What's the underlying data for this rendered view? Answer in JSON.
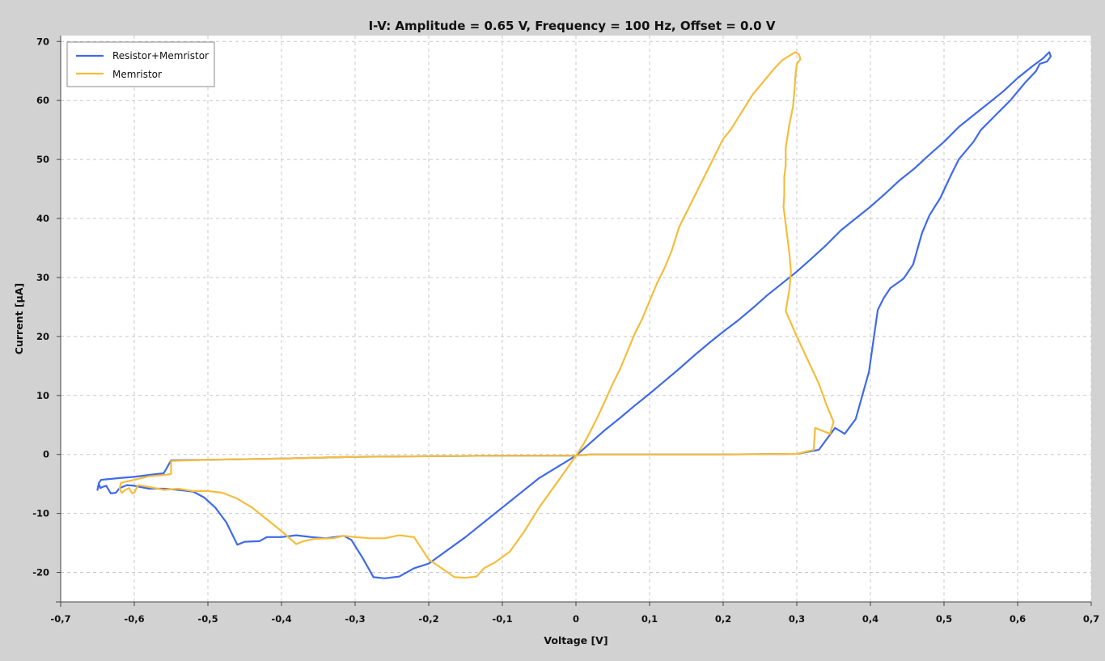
{
  "chart_data": {
    "type": "line",
    "title": "I-V: Amplitude = 0.65 V, Frequency = 100 Hz, Offset = 0.0 V",
    "xlabel": "Voltage [V]",
    "ylabel": "Current [µA]",
    "xlim": [
      -0.7,
      0.7
    ],
    "ylim": [
      -25,
      71
    ],
    "x_ticks": [
      -0.7,
      -0.6,
      -0.5,
      -0.4,
      -0.3,
      -0.2,
      -0.1,
      0,
      0.1,
      0.2,
      0.3,
      0.4,
      0.5,
      0.6,
      0.7
    ],
    "x_tick_labels": [
      "-0,7",
      "-0,6",
      "-0,5",
      "-0,4",
      "-0,3",
      "-0,2",
      "-0,1",
      "0",
      "0,1",
      "0,2",
      "0,3",
      "0,4",
      "0,5",
      "0,6",
      "0,7"
    ],
    "y_ticks": [
      -20,
      -10,
      0,
      10,
      20,
      30,
      40,
      50,
      60,
      70
    ],
    "y_tick_labels": [
      "-20",
      "-10",
      "0",
      "10",
      "20",
      "30",
      "40",
      "50",
      "60",
      "70"
    ],
    "grid": true,
    "legend_position": "top-left",
    "series": [
      {
        "name": "Resistor+Memristor",
        "color": "#3f6ae8",
        "points": [
          [
            0,
            -0.2
          ],
          [
            0.02,
            2
          ],
          [
            0.04,
            4.2
          ],
          [
            0.06,
            6.2
          ],
          [
            0.08,
            8.3
          ],
          [
            0.1,
            10.3
          ],
          [
            0.12,
            12.4
          ],
          [
            0.14,
            14.5
          ],
          [
            0.16,
            16.7
          ],
          [
            0.18,
            18.8
          ],
          [
            0.2,
            20.8
          ],
          [
            0.22,
            22.7
          ],
          [
            0.24,
            24.8
          ],
          [
            0.26,
            27
          ],
          [
            0.28,
            29
          ],
          [
            0.3,
            31
          ],
          [
            0.32,
            33.2
          ],
          [
            0.34,
            35.5
          ],
          [
            0.36,
            38
          ],
          [
            0.38,
            40
          ],
          [
            0.4,
            42
          ],
          [
            0.42,
            44.2
          ],
          [
            0.44,
            46.5
          ],
          [
            0.46,
            48.5
          ],
          [
            0.48,
            50.8
          ],
          [
            0.5,
            53
          ],
          [
            0.52,
            55.5
          ],
          [
            0.54,
            57.5
          ],
          [
            0.56,
            59.5
          ],
          [
            0.58,
            61.5
          ],
          [
            0.6,
            63.8
          ],
          [
            0.62,
            65.8
          ],
          [
            0.635,
            67.2
          ],
          [
            0.643,
            68.2
          ],
          [
            0.645,
            67.5
          ],
          [
            0.64,
            66.6
          ],
          [
            0.63,
            66.2
          ],
          [
            0.625,
            65
          ],
          [
            0.61,
            63
          ],
          [
            0.59,
            60
          ],
          [
            0.57,
            57.5
          ],
          [
            0.55,
            55
          ],
          [
            0.54,
            53
          ],
          [
            0.52,
            50
          ],
          [
            0.51,
            47.5
          ],
          [
            0.495,
            43.5
          ],
          [
            0.48,
            40.5
          ],
          [
            0.47,
            37.5
          ],
          [
            0.458,
            32.2
          ],
          [
            0.445,
            29.8
          ],
          [
            0.427,
            28.2
          ],
          [
            0.418,
            26.5
          ],
          [
            0.41,
            24.5
          ],
          [
            0.398,
            14
          ],
          [
            0.38,
            6
          ],
          [
            0.365,
            3.5
          ],
          [
            0.352,
            4.5
          ],
          [
            0.33,
            0.8
          ],
          [
            0.3,
            0.1
          ],
          [
            0.2,
            0
          ],
          [
            0.1,
            0
          ],
          [
            0.02,
            0
          ],
          [
            0,
            -0.2
          ],
          [
            -0.05,
            -4
          ],
          [
            -0.1,
            -9
          ],
          [
            -0.15,
            -14
          ],
          [
            -0.2,
            -18.5
          ],
          [
            -0.22,
            -19.3
          ],
          [
            -0.24,
            -20.7
          ],
          [
            -0.26,
            -21
          ],
          [
            -0.275,
            -20.8
          ],
          [
            -0.29,
            -17.5
          ],
          [
            -0.305,
            -14.5
          ],
          [
            -0.315,
            -13.8
          ],
          [
            -0.34,
            -14.2
          ],
          [
            -0.36,
            -14
          ],
          [
            -0.38,
            -13.7
          ],
          [
            -0.4,
            -14
          ],
          [
            -0.42,
            -14
          ],
          [
            -0.43,
            -14.7
          ],
          [
            -0.45,
            -14.8
          ],
          [
            -0.46,
            -15.3
          ],
          [
            -0.475,
            -11.5
          ],
          [
            -0.49,
            -9
          ],
          [
            -0.505,
            -7.3
          ],
          [
            -0.52,
            -6.3
          ],
          [
            -0.54,
            -6
          ],
          [
            -0.56,
            -5.8
          ],
          [
            -0.58,
            -5.8
          ],
          [
            -0.6,
            -5.3
          ],
          [
            -0.61,
            -5.2
          ],
          [
            -0.62,
            -5.7
          ],
          [
            -0.625,
            -6.5
          ],
          [
            -0.632,
            -6.6
          ],
          [
            -0.638,
            -5.3
          ],
          [
            -0.643,
            -5.5
          ],
          [
            -0.646,
            -5.7
          ],
          [
            -0.648,
            -5
          ],
          [
            -0.65,
            -6
          ],
          [
            -0.648,
            -4.8
          ],
          [
            -0.645,
            -4.3
          ],
          [
            -0.62,
            -4
          ],
          [
            -0.6,
            -3.8
          ],
          [
            -0.575,
            -3.4
          ],
          [
            -0.56,
            -3.2
          ],
          [
            -0.55,
            -1
          ],
          [
            -0.5,
            -0.9
          ],
          [
            -0.4,
            -0.7
          ],
          [
            -0.3,
            -0.4
          ],
          [
            -0.2,
            -0.3
          ],
          [
            -0.1,
            -0.2
          ],
          [
            0,
            -0.2
          ]
        ]
      },
      {
        "name": "Memristor",
        "color": "#f5bd3c",
        "points": [
          [
            0,
            -0.2
          ],
          [
            0.01,
            1.7
          ],
          [
            0.02,
            4
          ],
          [
            0.03,
            6.5
          ],
          [
            0.04,
            9.2
          ],
          [
            0.05,
            12
          ],
          [
            0.06,
            14.5
          ],
          [
            0.07,
            17.5
          ],
          [
            0.08,
            20.5
          ],
          [
            0.09,
            23
          ],
          [
            0.1,
            26
          ],
          [
            0.11,
            29
          ],
          [
            0.12,
            31.5
          ],
          [
            0.13,
            34.5
          ],
          [
            0.14,
            38.5
          ],
          [
            0.15,
            41
          ],
          [
            0.16,
            43.5
          ],
          [
            0.17,
            46
          ],
          [
            0.18,
            48.5
          ],
          [
            0.19,
            51
          ],
          [
            0.2,
            53.5
          ],
          [
            0.21,
            55
          ],
          [
            0.22,
            57
          ],
          [
            0.23,
            59
          ],
          [
            0.24,
            61
          ],
          [
            0.25,
            62.5
          ],
          [
            0.26,
            64
          ],
          [
            0.27,
            65.5
          ],
          [
            0.28,
            66.8
          ],
          [
            0.29,
            67.6
          ],
          [
            0.298,
            68.2
          ],
          [
            0.303,
            67.8
          ],
          [
            0.305,
            67
          ],
          [
            0.3,
            66.2
          ],
          [
            0.298,
            64
          ],
          [
            0.297,
            62
          ],
          [
            0.295,
            59
          ],
          [
            0.29,
            56
          ],
          [
            0.285,
            52
          ],
          [
            0.285,
            49
          ],
          [
            0.283,
            47
          ],
          [
            0.283,
            44
          ],
          [
            0.282,
            42
          ],
          [
            0.284,
            40
          ],
          [
            0.287,
            37
          ],
          [
            0.29,
            34
          ],
          [
            0.292,
            31
          ],
          [
            0.29,
            28
          ],
          [
            0.285,
            24.3
          ],
          [
            0.3,
            20
          ],
          [
            0.315,
            16
          ],
          [
            0.33,
            12
          ],
          [
            0.34,
            8.5
          ],
          [
            0.35,
            5.5
          ],
          [
            0.345,
            3.5
          ],
          [
            0.325,
            4.5
          ],
          [
            0.323,
            0.8
          ],
          [
            0.3,
            0.1
          ],
          [
            0.2,
            0
          ],
          [
            0.1,
            0
          ],
          [
            0.02,
            0
          ],
          [
            0,
            -0.2
          ],
          [
            -0.01,
            -2
          ],
          [
            -0.03,
            -5.5
          ],
          [
            -0.05,
            -9
          ],
          [
            -0.07,
            -13
          ],
          [
            -0.09,
            -16.5
          ],
          [
            -0.11,
            -18.3
          ],
          [
            -0.125,
            -19.3
          ],
          [
            -0.135,
            -20.7
          ],
          [
            -0.15,
            -20.9
          ],
          [
            -0.165,
            -20.8
          ],
          [
            -0.18,
            -19.5
          ],
          [
            -0.2,
            -17.8
          ],
          [
            -0.22,
            -14
          ],
          [
            -0.24,
            -13.7
          ],
          [
            -0.26,
            -14.2
          ],
          [
            -0.28,
            -14.2
          ],
          [
            -0.3,
            -14
          ],
          [
            -0.315,
            -13.8
          ],
          [
            -0.33,
            -14.2
          ],
          [
            -0.355,
            -14.3
          ],
          [
            -0.37,
            -14.7
          ],
          [
            -0.38,
            -15.2
          ],
          [
            -0.4,
            -13
          ],
          [
            -0.42,
            -11
          ],
          [
            -0.44,
            -9
          ],
          [
            -0.46,
            -7.5
          ],
          [
            -0.48,
            -6.5
          ],
          [
            -0.5,
            -6.2
          ],
          [
            -0.52,
            -6.2
          ],
          [
            -0.54,
            -5.8
          ],
          [
            -0.56,
            -6
          ],
          [
            -0.58,
            -5.5
          ],
          [
            -0.595,
            -5.2
          ],
          [
            -0.6,
            -6.5
          ],
          [
            -0.603,
            -6.6
          ],
          [
            -0.607,
            -5.7
          ],
          [
            -0.612,
            -6
          ],
          [
            -0.617,
            -6.5
          ],
          [
            -0.62,
            -5.8
          ],
          [
            -0.618,
            -4.8
          ],
          [
            -0.6,
            -4.3
          ],
          [
            -0.58,
            -3.7
          ],
          [
            -0.56,
            -3.5
          ],
          [
            -0.55,
            -3.3
          ],
          [
            -0.55,
            -1.1
          ],
          [
            -0.5,
            -0.9
          ],
          [
            -0.4,
            -0.7
          ],
          [
            -0.3,
            -0.4
          ],
          [
            -0.2,
            -0.3
          ],
          [
            -0.1,
            -0.2
          ],
          [
            0,
            -0.2
          ]
        ]
      }
    ]
  }
}
